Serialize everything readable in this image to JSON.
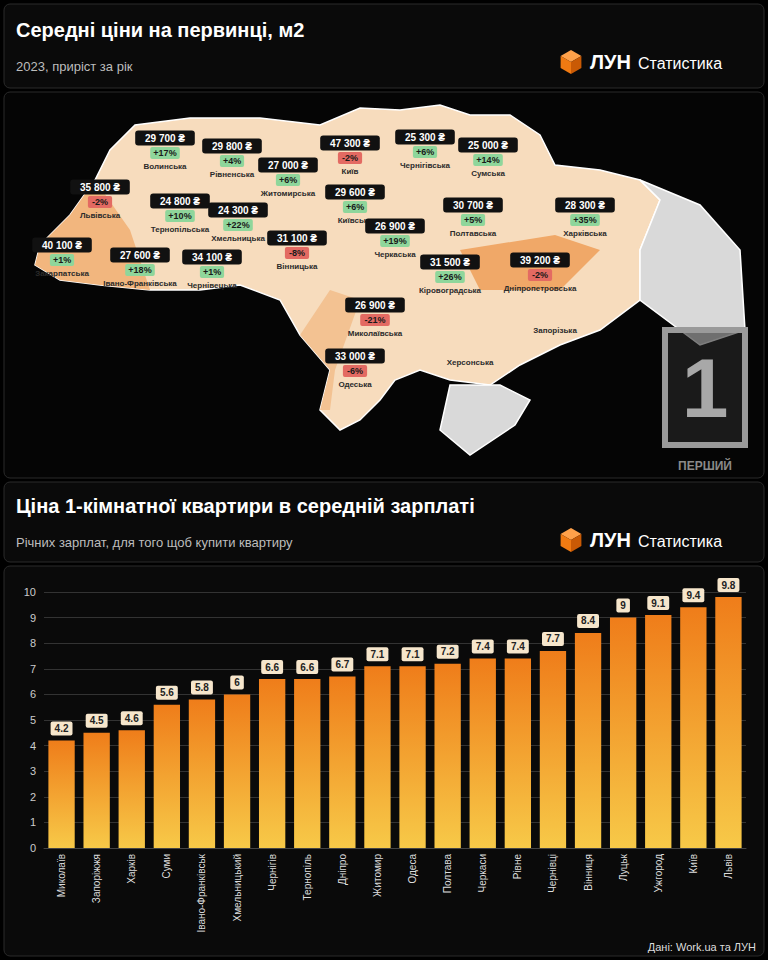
{
  "map_panel": {
    "title": "Середні ціни на первинці, м2",
    "subtitle": "2023, приріст за рік",
    "brand": "ЛУН Статистика",
    "regions": [
      {
        "name": "Волинська",
        "price": "29 700 ₴",
        "change": "+17%"
      },
      {
        "name": "Рівненська",
        "price": "29 800 ₴",
        "change": "+4%"
      },
      {
        "name": "Житомирська",
        "price": "27 000 ₴",
        "change": "+6%"
      },
      {
        "name": "Київ",
        "price": "47 300 ₴",
        "change": "-2%"
      },
      {
        "name": "Чернігівська",
        "price": "25 300 ₴",
        "change": "+6%"
      },
      {
        "name": "Сумська",
        "price": "25 000 ₴",
        "change": "+14%"
      },
      {
        "name": "Львівська",
        "price": "35 800 ₴",
        "change": "-2%"
      },
      {
        "name": "Тернопільська",
        "price": "24 800 ₴",
        "change": "+10%"
      },
      {
        "name": "Хмельницька",
        "price": "24 300 ₴",
        "change": "+22%"
      },
      {
        "name": "Київська",
        "price": "29 600 ₴",
        "change": "+6%"
      },
      {
        "name": "Полтавська",
        "price": "30 700 ₴",
        "change": "+5%"
      },
      {
        "name": "Харківська",
        "price": "28 300 ₴",
        "change": "+35%"
      },
      {
        "name": "Черкаська",
        "price": "26 900 ₴",
        "change": "+19%"
      },
      {
        "name": "Вінницька",
        "price": "31 100 ₴",
        "change": "-8%"
      },
      {
        "name": "Закарпатська",
        "price": "40 100 ₴",
        "change": "+1%"
      },
      {
        "name": "Івано-Франківська",
        "price": "27 600 ₴",
        "change": "+18%"
      },
      {
        "name": "Чернівецька",
        "price": "34 100 ₴",
        "change": "+1%"
      },
      {
        "name": "Кіровоградська",
        "price": "31 500 ₴",
        "change": "+26%"
      },
      {
        "name": "Дніпропетровська",
        "price": "39 200 ₴",
        "change": "-2%"
      },
      {
        "name": "Миколаївська",
        "price": "26 900 ₴",
        "change": "-21%"
      },
      {
        "name": "Одеська",
        "price": "33 000 ₴",
        "change": "-6%"
      }
    ],
    "unlabeled_regions": [
      "Запорізька",
      "Херсонська"
    ],
    "watermark": {
      "number": "1",
      "text": "ПЕРШИЙ"
    }
  },
  "chart_data": {
    "type": "bar",
    "title": "Ціна 1-кімнатної квартири в середній зарплаті",
    "subtitle": "Річних зарплат, для того щоб купити квартиру",
    "brand": "ЛУН Статистика",
    "source": "Дані: Work.ua та ЛУН",
    "categories": [
      "Миколаїв",
      "Запоріжжя",
      "Харків",
      "Суми",
      "Івано-Франківськ",
      "Хмельницький",
      "Чернігів",
      "Тернопіль",
      "Дніпро",
      "Житомир",
      "Одеса",
      "Полтава",
      "Черкаси",
      "Рівне",
      "Чернівці",
      "Вінниця",
      "Луцьк",
      "Ужгород",
      "Київ",
      "Львів"
    ],
    "values": [
      4.2,
      4.5,
      4.6,
      5.6,
      5.8,
      6,
      6.6,
      6.6,
      6.7,
      7.1,
      7.1,
      7.2,
      7.4,
      7.4,
      7.7,
      8.4,
      9,
      9.1,
      9.4,
      9.8
    ],
    "color": "#ef7d1a",
    "ylim": [
      0,
      10
    ],
    "yticks": [
      0,
      1,
      2,
      3,
      4,
      5,
      6,
      7,
      8,
      9,
      10
    ],
    "grid": true,
    "data_labels": true
  }
}
